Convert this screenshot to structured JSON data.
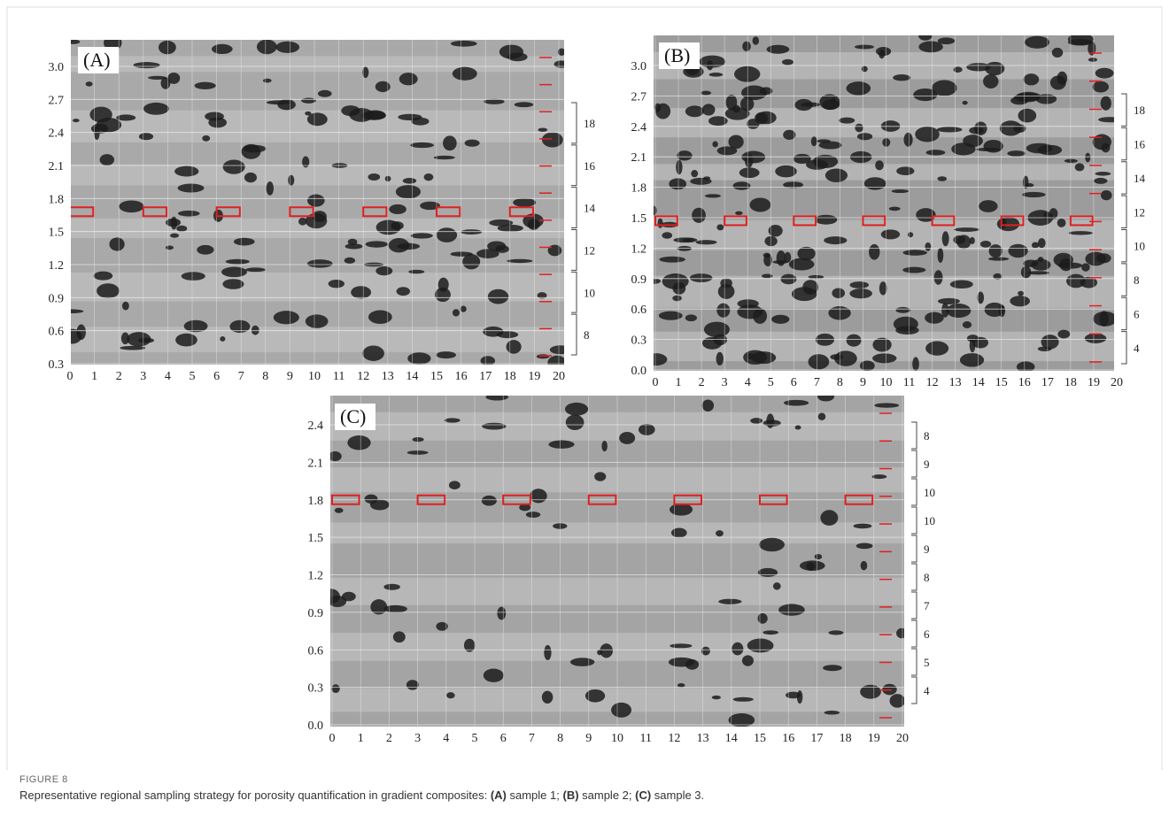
{
  "panels": [
    {
      "label": "(A)",
      "yticks": [
        "3.0",
        "2.7",
        "2.4",
        "2.1",
        "1.8",
        "1.5",
        "1.2",
        "0.9",
        "0.6",
        "0.3"
      ],
      "xticks": [
        0,
        1,
        2,
        3,
        4,
        5,
        6,
        7,
        8,
        9,
        10,
        11,
        12,
        13,
        14,
        15,
        16,
        17,
        18,
        19,
        20
      ],
      "brackets": [
        "18",
        "16",
        "14",
        "12",
        "10",
        "8"
      ]
    },
    {
      "label": "(B)",
      "yticks": [
        "3.0",
        "2.7",
        "2.4",
        "2.1",
        "1.8",
        "1.5",
        "1.2",
        "0.9",
        "0.6",
        "0.3",
        "0.0"
      ],
      "xticks": [
        0,
        1,
        2,
        3,
        4,
        5,
        6,
        7,
        8,
        9,
        10,
        11,
        12,
        13,
        14,
        15,
        16,
        17,
        18,
        19,
        20
      ],
      "brackets": [
        "18",
        "16",
        "14",
        "12",
        "10",
        "8",
        "6",
        "4"
      ]
    },
    {
      "label": "(C)",
      "yticks": [
        "2.4",
        "2.1",
        "1.8",
        "1.5",
        "1.2",
        "0.9",
        "0.6",
        "0.3",
        "0.0"
      ],
      "xticks": [
        0,
        1,
        2,
        3,
        4,
        5,
        6,
        7,
        8,
        9,
        10,
        11,
        12,
        13,
        14,
        15,
        16,
        17,
        18,
        19,
        20
      ],
      "brackets": [
        "8",
        "9",
        "10",
        "10",
        "9",
        "8",
        "7",
        "6",
        "5",
        "4"
      ]
    }
  ],
  "caption": {
    "figure": "FIGURE 8",
    "parts": [
      "Representative regional sampling strategy for porosity quantification in gradient composites: ",
      "(A)",
      " sample 1; ",
      "(B)",
      " sample 2; ",
      "(C)",
      " sample 3."
    ]
  }
}
